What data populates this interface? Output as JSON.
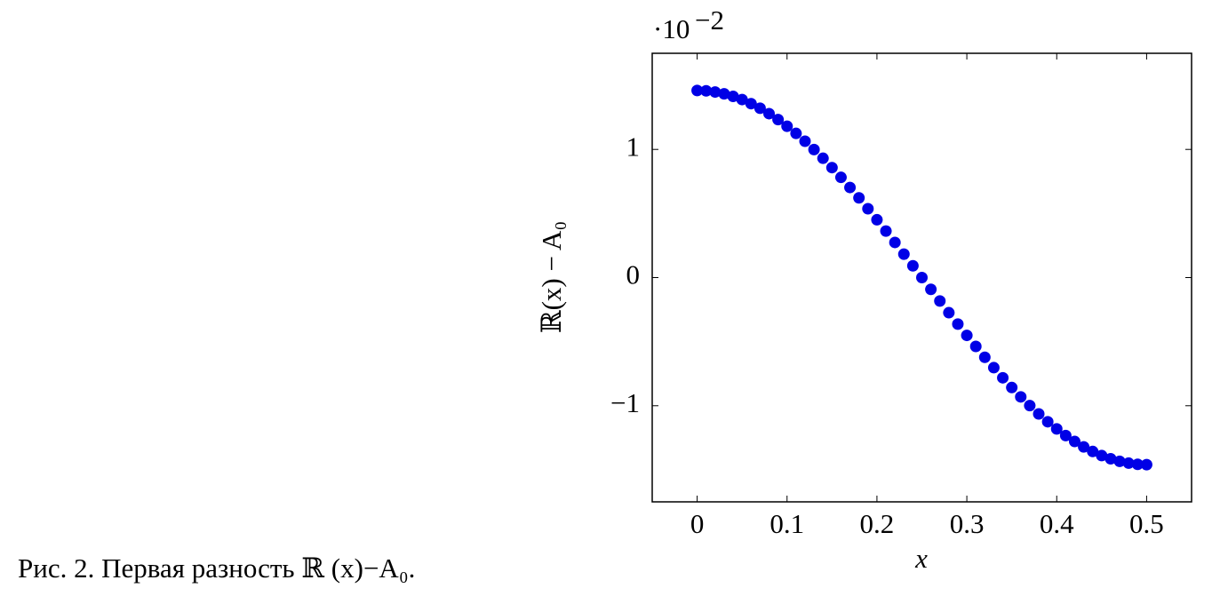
{
  "chart_data": {
    "type": "scatter",
    "caption": "Рис. 2. Первая разность ℝ (x)−A₀.",
    "x_label": "x",
    "y_label": "ℝ(x) − A₀",
    "y_scale_label": "·10",
    "y_scale_exponent": "−2",
    "color": "#0000e6",
    "x": [
      0,
      0.01,
      0.02,
      0.03,
      0.04,
      0.05,
      0.06,
      0.07,
      0.08,
      0.09,
      0.1,
      0.11,
      0.12,
      0.13,
      0.14,
      0.15,
      0.16,
      0.17,
      0.18,
      0.19,
      0.2,
      0.21,
      0.22,
      0.23,
      0.24,
      0.25,
      0.26,
      0.27,
      0.28,
      0.29,
      0.3,
      0.31,
      0.32,
      0.33,
      0.34,
      0.35,
      0.36,
      0.37,
      0.38,
      0.39,
      0.4,
      0.41,
      0.42,
      0.43,
      0.44,
      0.45,
      0.46,
      0.47,
      0.48,
      0.49,
      0.5
    ],
    "values": [
      1.46,
      1.457,
      1.448,
      1.434,
      1.414,
      1.389,
      1.357,
      1.321,
      1.279,
      1.233,
      1.181,
      1.125,
      1.064,
      0.999,
      0.931,
      0.858,
      0.782,
      0.703,
      0.622,
      0.537,
      0.451,
      0.363,
      0.274,
      0.183,
      0.092,
      0,
      -0.092,
      -0.183,
      -0.274,
      -0.363,
      -0.451,
      -0.537,
      -0.622,
      -0.703,
      -0.782,
      -0.858,
      -0.931,
      -0.999,
      -1.064,
      -1.125,
      -1.181,
      -1.233,
      -1.279,
      -1.321,
      -1.357,
      -1.389,
      -1.414,
      -1.434,
      -1.448,
      -1.457,
      -1.46
    ],
    "xlim": [
      -0.05,
      0.55
    ],
    "ylim": [
      -1.75,
      1.75
    ],
    "xticks": [
      0,
      0.1,
      0.2,
      0.3,
      0.4,
      0.5
    ],
    "yticks": [
      {
        "value": -1,
        "label": "−1"
      },
      0,
      1
    ]
  }
}
